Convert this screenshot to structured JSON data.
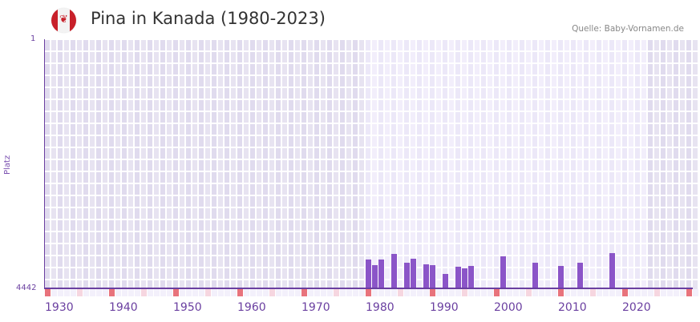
{
  "header": {
    "flag_icon": "canada-flag-icon",
    "title": "Pina in Kanada (1980-2023)",
    "source": "Quelle: Baby-Vornamen.de"
  },
  "colors": {
    "bar": "#8b55c8",
    "axis": "#6a3fa0",
    "decade_marker": "#e8737c",
    "half_decade_marker": "#f6d6e0",
    "bg_outside": "#e3dff0",
    "bg_inside": "#efebf9"
  },
  "chart_data": {
    "type": "bar",
    "title": "Pina in Kanada (1980-2023)",
    "xlabel": "",
    "ylabel": "Platz",
    "y_inverted": true,
    "ylim": [
      1,
      4442
    ],
    "yticks": [
      "1",
      "4442"
    ],
    "xlim": [
      1930,
      2031
    ],
    "xticks": [
      "1930",
      "1940",
      "1950",
      "1960",
      "1970",
      "1980",
      "1990",
      "2000",
      "2010",
      "2020"
    ],
    "data_range": [
      1980,
      2023
    ],
    "grid": true,
    "legend": null,
    "x": [
      1980,
      1981,
      1982,
      1984,
      1986,
      1987,
      1989,
      1990,
      1992,
      1994,
      1995,
      1996,
      2001,
      2006,
      2010,
      2013,
      2018
    ],
    "values": [
      3926,
      4026,
      3926,
      3826,
      3983,
      3912,
      4012,
      4026,
      4184,
      4055,
      4084,
      4041,
      3869,
      3983,
      4041,
      3983,
      3812
    ]
  }
}
